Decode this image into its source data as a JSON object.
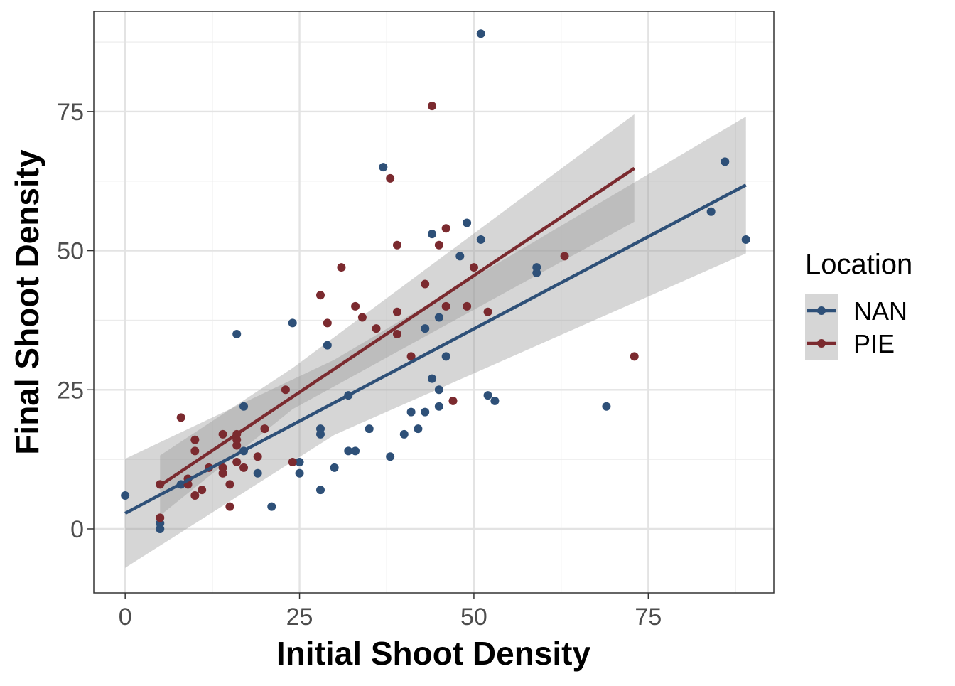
{
  "chart_data": {
    "type": "scatter",
    "xlabel": "Initial Shoot Density",
    "ylabel": "Final Shoot Density",
    "xlim": [
      -4.5,
      93
    ],
    "ylim": [
      -11.5,
      93
    ],
    "x_ticks": [
      0,
      25,
      50,
      75
    ],
    "y_ticks": [
      0,
      25,
      50,
      75
    ],
    "grid": true,
    "legend": {
      "title": "Location",
      "placement": "right"
    },
    "series": [
      {
        "name": "NAN",
        "color": "#2e5078",
        "points": [
          [
            0,
            6
          ],
          [
            5,
            0
          ],
          [
            5,
            1
          ],
          [
            8,
            8
          ],
          [
            16,
            35
          ],
          [
            17,
            22
          ],
          [
            17,
            14
          ],
          [
            19,
            10
          ],
          [
            21,
            4
          ],
          [
            24,
            37
          ],
          [
            25,
            12
          ],
          [
            25,
            10
          ],
          [
            28,
            18
          ],
          [
            28,
            17
          ],
          [
            28,
            7
          ],
          [
            29,
            33
          ],
          [
            30,
            11
          ],
          [
            32,
            24
          ],
          [
            32,
            14
          ],
          [
            33,
            14
          ],
          [
            35,
            18
          ],
          [
            37,
            65
          ],
          [
            38,
            13
          ],
          [
            40,
            17
          ],
          [
            41,
            21
          ],
          [
            42,
            18
          ],
          [
            43,
            36
          ],
          [
            43,
            21
          ],
          [
            44,
            53
          ],
          [
            44,
            27
          ],
          [
            45,
            38
          ],
          [
            45,
            25
          ],
          [
            45,
            22
          ],
          [
            46,
            31
          ],
          [
            48,
            49
          ],
          [
            49,
            55
          ],
          [
            51,
            89
          ],
          [
            51,
            52
          ],
          [
            52,
            24
          ],
          [
            53,
            23
          ],
          [
            59,
            47
          ],
          [
            59,
            46
          ],
          [
            69,
            22
          ],
          [
            84,
            57
          ],
          [
            86,
            66
          ],
          [
            89,
            52
          ]
        ],
        "fit": {
          "x": [
            0,
            89
          ],
          "y": [
            2.8,
            61.8
          ]
        },
        "ci": {
          "x": [
            0,
            30,
            89
          ],
          "upper": [
            12.6,
            30.4,
            74.1
          ],
          "lower": [
            -7,
            16.9,
            49.5
          ]
        }
      },
      {
        "name": "PIE",
        "color": "#7b2a2f",
        "points": [
          [
            5,
            8
          ],
          [
            5,
            2
          ],
          [
            8,
            20
          ],
          [
            9,
            9
          ],
          [
            9,
            8
          ],
          [
            10,
            16
          ],
          [
            10,
            14
          ],
          [
            10,
            6
          ],
          [
            11,
            7
          ],
          [
            12,
            11
          ],
          [
            14,
            17
          ],
          [
            14,
            11
          ],
          [
            14,
            10
          ],
          [
            15,
            8
          ],
          [
            15,
            4
          ],
          [
            16,
            17
          ],
          [
            16,
            16
          ],
          [
            16,
            15
          ],
          [
            16,
            12
          ],
          [
            17,
            11
          ],
          [
            19,
            13
          ],
          [
            20,
            18
          ],
          [
            23,
            25
          ],
          [
            24,
            12
          ],
          [
            28,
            42
          ],
          [
            29,
            37
          ],
          [
            31,
            47
          ],
          [
            33,
            40
          ],
          [
            34,
            38
          ],
          [
            36,
            36
          ],
          [
            38,
            63
          ],
          [
            39,
            51
          ],
          [
            39,
            39
          ],
          [
            39,
            35
          ],
          [
            41,
            31
          ],
          [
            43,
            44
          ],
          [
            44,
            76
          ],
          [
            45,
            51
          ],
          [
            46,
            54
          ],
          [
            46,
            40
          ],
          [
            47,
            23
          ],
          [
            49,
            40
          ],
          [
            50,
            47
          ],
          [
            52,
            39
          ],
          [
            63,
            49
          ],
          [
            73,
            31
          ]
        ],
        "fit": {
          "x": [
            5,
            73
          ],
          "y": [
            7.8,
            64.8
          ]
        },
        "ci": {
          "x": [
            5,
            24,
            73
          ],
          "upper": [
            13.2,
            28.9,
            74.5
          ],
          "lower": [
            2.4,
            21.5,
            55.2
          ]
        }
      }
    ]
  }
}
